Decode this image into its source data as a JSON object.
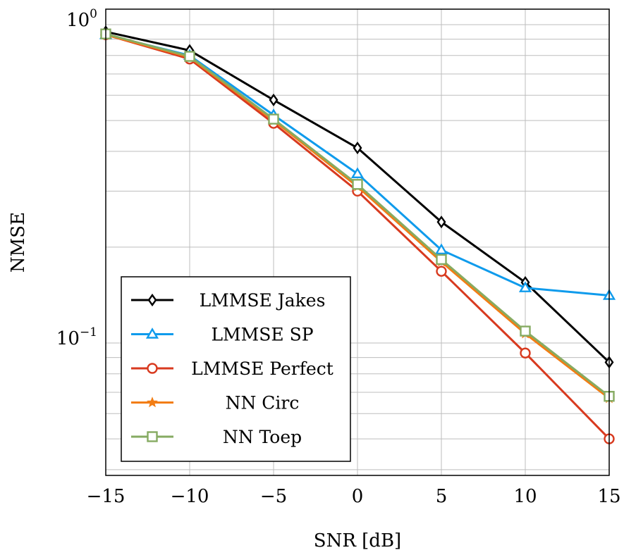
{
  "chart_data": {
    "type": "line",
    "xlabel": "SNR [dB]",
    "ylabel": "NMSE",
    "y_scale": "log",
    "xlim": [
      -15,
      15
    ],
    "ylim": [
      0.04,
      1.0
    ],
    "x_ticks": [
      -15,
      -10,
      -5,
      0,
      5,
      10,
      15
    ],
    "x_tick_labels": [
      "−15",
      "−10",
      "−5",
      "0",
      "5",
      "10",
      "15"
    ],
    "y_ticks": [
      {
        "value": 1.0,
        "base": "10",
        "exp": "0"
      },
      {
        "value": 0.1,
        "base": "10",
        "exp": "−1"
      }
    ],
    "grid": true,
    "legend_position": "bottom-left",
    "x": [
      -15,
      -10,
      -5,
      0,
      5,
      10,
      15
    ],
    "series": [
      {
        "name": "LMMSE Jakes",
        "color": "#000000",
        "marker": "diamond",
        "values": [
          0.95,
          0.83,
          0.58,
          0.41,
          0.24,
          0.155,
          0.087
        ]
      },
      {
        "name": "LMMSE SP",
        "color": "#0f9bec",
        "marker": "triangle",
        "values": [
          0.93,
          0.8,
          0.52,
          0.34,
          0.196,
          0.149,
          0.141
        ]
      },
      {
        "name": "LMMSE Perfect",
        "color": "#d83a1f",
        "marker": "circle",
        "values": [
          0.93,
          0.78,
          0.49,
          0.3,
          0.168,
          0.093,
          0.05
        ]
      },
      {
        "name": "NN Circ",
        "color": "#f27d14",
        "marker": "star",
        "values": [
          0.93,
          0.79,
          0.5,
          0.31,
          0.18,
          0.107,
          0.067
        ]
      },
      {
        "name": "NN Toep",
        "color": "#86ab62",
        "marker": "square",
        "values": [
          0.935,
          0.795,
          0.505,
          0.315,
          0.183,
          0.109,
          0.068
        ]
      }
    ]
  }
}
